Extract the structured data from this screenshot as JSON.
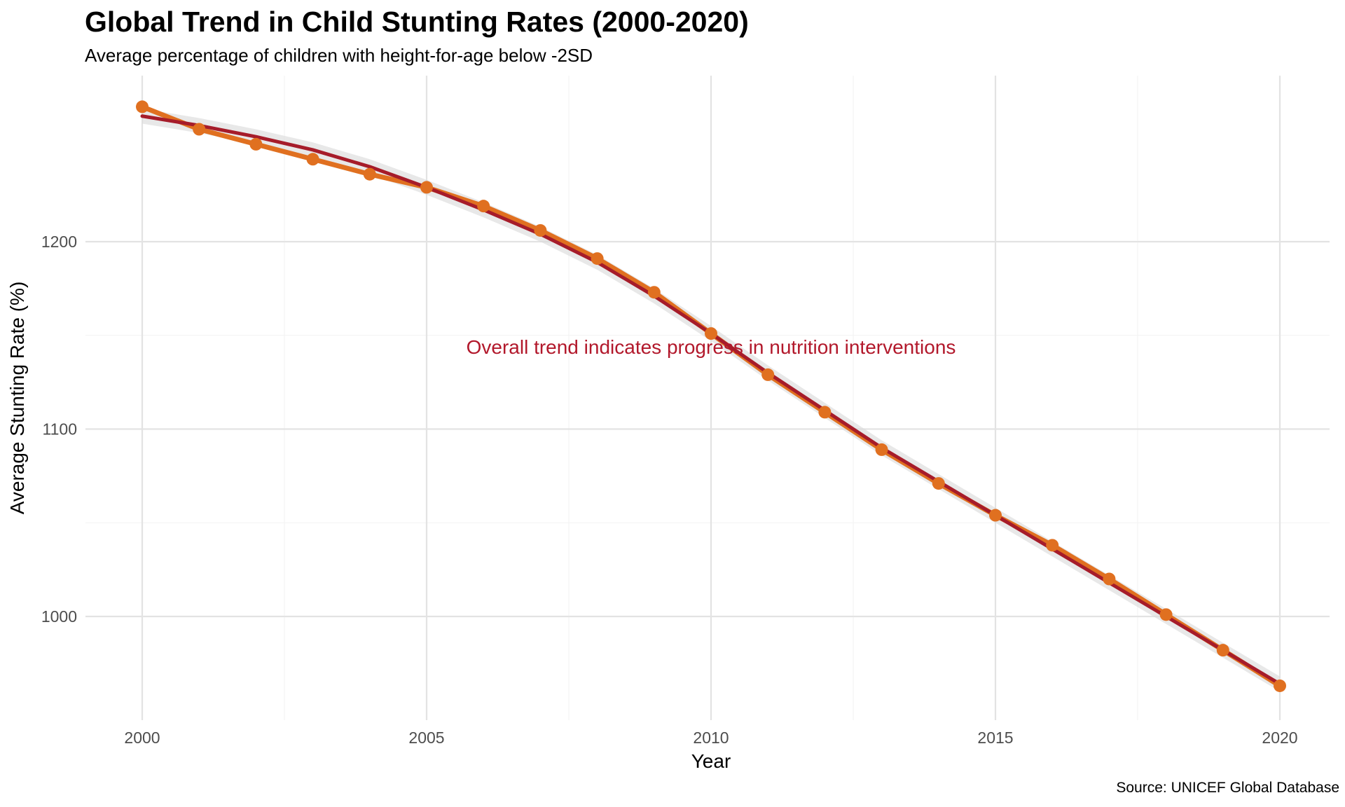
{
  "chart_data": {
    "type": "line",
    "title": "Global Trend in Child Stunting Rates (2000-2020)",
    "subtitle": "Average percentage of children with height-for-age below -2SD",
    "xlabel": "Year",
    "ylabel": "Average Stunting Rate (%)",
    "caption": "Source: UNICEF Global Database",
    "annotation": {
      "text": "Overall trend indicates progress in nutrition interventions",
      "x": 2010,
      "y": 1144
    },
    "xlim": [
      1999,
      2021
    ],
    "ylim": [
      949,
      1292
    ],
    "x_ticks": [
      2000,
      2005,
      2010,
      2015,
      2020
    ],
    "y_ticks": [
      1000,
      1100,
      1200
    ],
    "grid": true,
    "x": [
      2000,
      2001,
      2002,
      2003,
      2004,
      2005,
      2006,
      2007,
      2008,
      2009,
      2010,
      2011,
      2012,
      2013,
      2014,
      2015,
      2016,
      2017,
      2018,
      2019,
      2020
    ],
    "series": [
      {
        "kind": "line+points",
        "color": "#e07020",
        "values": [
          1272,
          1260,
          1252,
          1244,
          1236,
          1229,
          1219,
          1206,
          1191,
          1173,
          1151,
          1129,
          1109,
          1089,
          1071,
          1054,
          1038,
          1020,
          1001,
          982,
          963
        ]
      },
      {
        "kind": "smooth-trend",
        "color": "#a61c2a",
        "band_color": "#d9d9d9",
        "values": [
          1267,
          1262,
          1256,
          1249,
          1240,
          1229,
          1217,
          1204,
          1189,
          1171,
          1151,
          1130,
          1110,
          1090,
          1072,
          1054,
          1036,
          1018,
          1000,
          982,
          964
        ]
      }
    ]
  }
}
